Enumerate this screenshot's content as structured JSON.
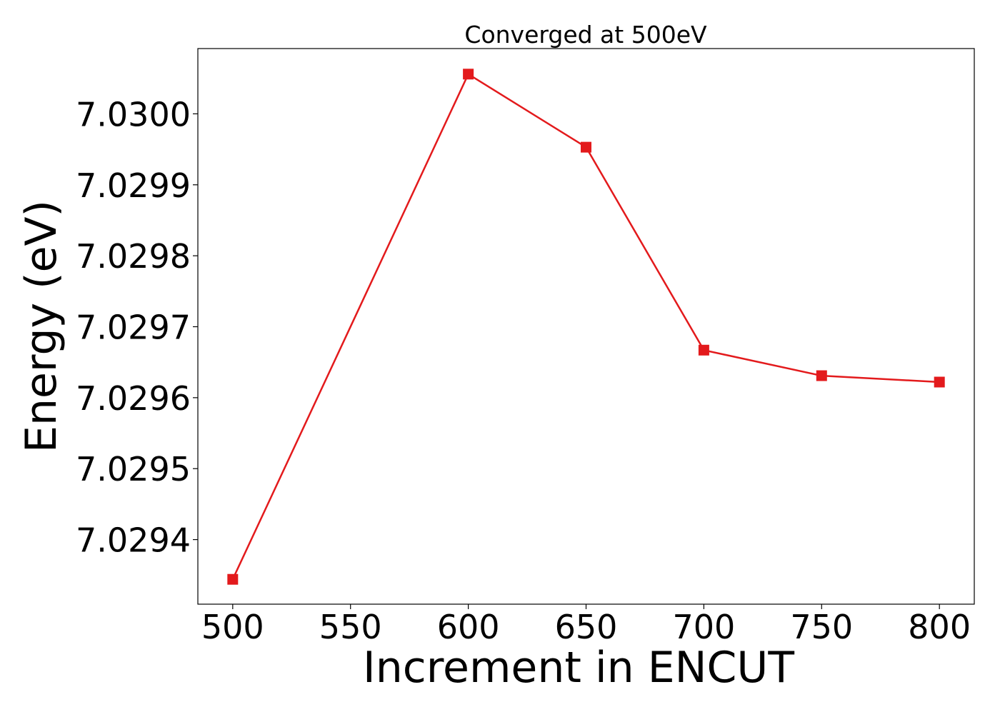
{
  "chart_data": {
    "type": "line",
    "title": "Converged at 500eV",
    "xlabel": "Increment in ENCUT",
    "ylabel": "Energy (eV)",
    "x": [
      500,
      600,
      650,
      700,
      750,
      800
    ],
    "series": [
      {
        "values": [
          7.029344,
          7.030056,
          7.029953,
          7.029667,
          7.029631,
          7.029622
        ],
        "color": "#e31a1c",
        "marker": "square"
      }
    ],
    "xticks": [
      500,
      550,
      600,
      650,
      700,
      750,
      800
    ],
    "xtick_labels": [
      "500",
      "550",
      "600",
      "650",
      "700",
      "750",
      "800"
    ],
    "yticks": [
      7.0294,
      7.0295,
      7.0296,
      7.0297,
      7.0298,
      7.0299,
      7.03
    ],
    "ytick_labels": [
      "7.0294",
      "7.0295",
      "7.0296",
      "7.0297",
      "7.0298",
      "7.0299",
      "7.0300"
    ],
    "xlim": [
      485.2,
      814.8
    ],
    "ylim": [
      7.029309,
      7.030092
    ],
    "grid": false,
    "legend": "none"
  }
}
